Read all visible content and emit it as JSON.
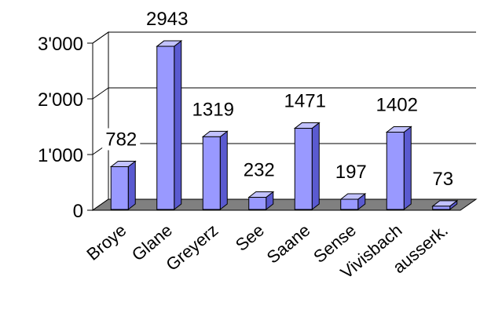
{
  "chart_data": {
    "type": "bar",
    "categories": [
      "Broye",
      "Glane",
      "Greyerz",
      "See",
      "Saane",
      "Sense",
      "Vivisbach",
      "ausserk."
    ],
    "values": [
      782,
      2943,
      1319,
      232,
      1471,
      197,
      1402,
      73
    ],
    "data_labels": [
      "782",
      "2943",
      "1319",
      "232",
      "1471",
      "197",
      "1402",
      "73"
    ],
    "y_ticks": [
      {
        "value": 0,
        "label": "0"
      },
      {
        "value": 1000,
        "label": "1'000"
      },
      {
        "value": 2000,
        "label": "2'000"
      },
      {
        "value": 3000,
        "label": "3'000"
      }
    ],
    "ylim": [
      0,
      3000
    ],
    "grid": true,
    "style": "3d-column",
    "colors": {
      "bar_front": "#9999ff",
      "bar_side": "#5a5ad0",
      "bar_top": "#c2c2ff",
      "floor": "#808080",
      "wall": "#ffffff",
      "grid": "#000000"
    }
  }
}
